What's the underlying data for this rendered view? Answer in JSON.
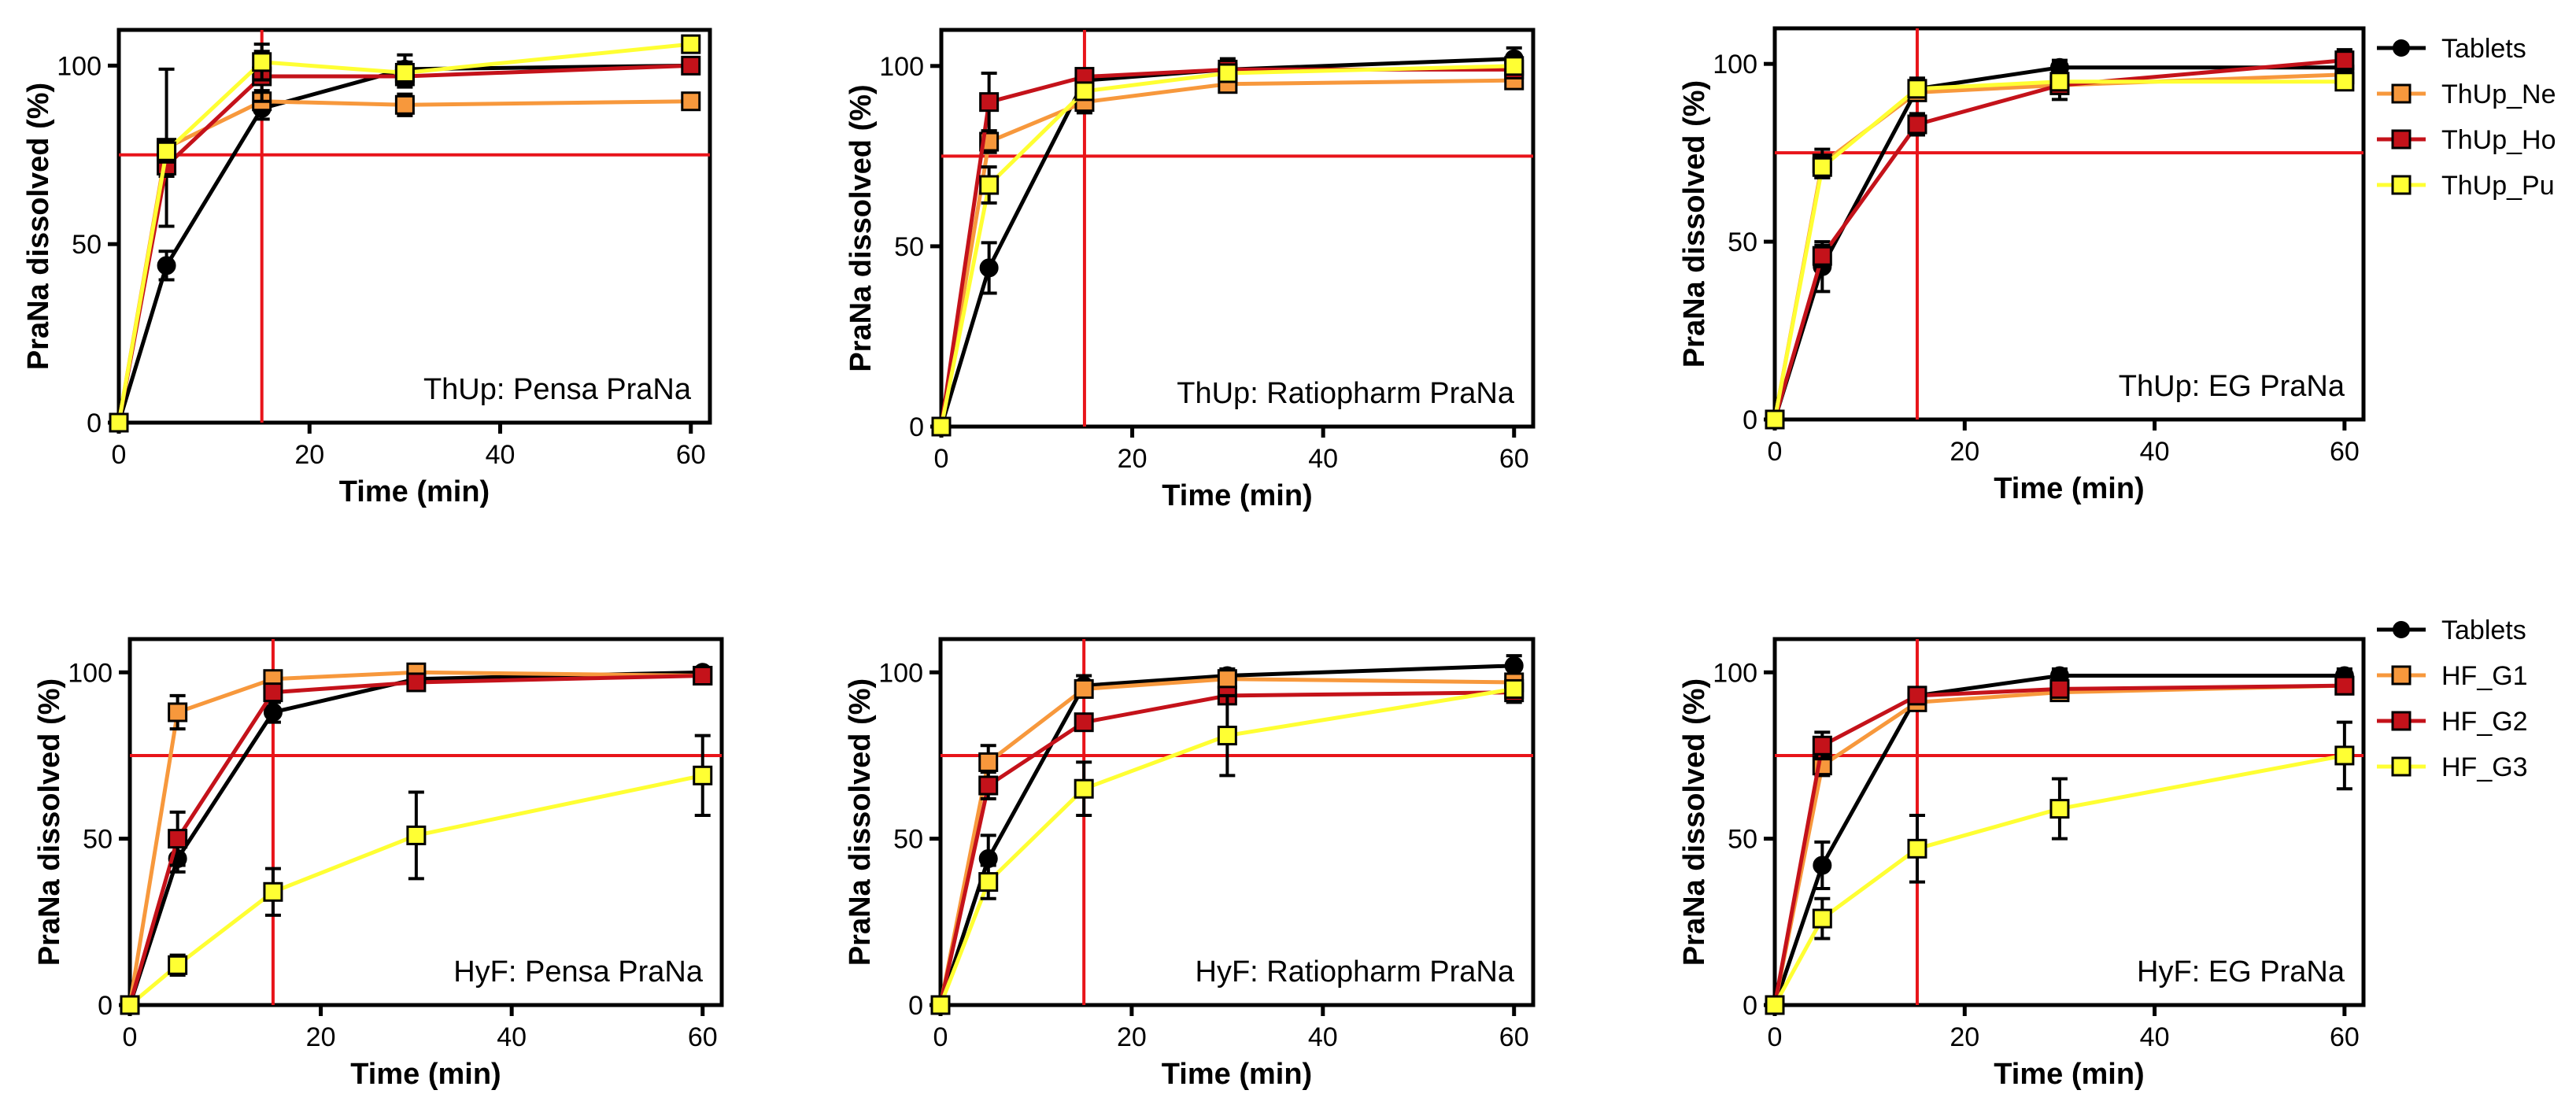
{
  "figure": {
    "description_free": true
  },
  "colors": {
    "Tablets": "#000000",
    "orange": "#f7983c",
    "darkred": "#c4121a",
    "yellow": "#ffff33",
    "reference": "#e8141a"
  },
  "legends": [
    {
      "entries": [
        "Tablets",
        "ThUp_Ne",
        "ThUp_Ho",
        "ThUp_Pu"
      ]
    },
    {
      "entries": [
        "Tablets",
        "HF_G1",
        "HF_G2",
        "HF_G3"
      ]
    }
  ],
  "chart_data": [
    {
      "type": "line",
      "panel_label": "ThUp: Pensa PraNa",
      "xlabel": "Time (min)",
      "ylabel": "PraNa dissolved (%)",
      "xlim": [
        0,
        62
      ],
      "ylim": [
        0,
        110
      ],
      "xticks": [
        0,
        20,
        40,
        60
      ],
      "yticks": [
        0,
        50,
        100
      ],
      "reference_lines": {
        "x": 15,
        "y": 75
      },
      "x": [
        0,
        5,
        15,
        30,
        60
      ],
      "series": [
        {
          "name": "Tablets",
          "marker": "circle",
          "values": [
            0,
            44,
            88,
            99,
            100
          ],
          "errors": [
            0,
            4,
            3,
            4,
            1
          ]
        },
        {
          "name": "ThUp_Ne",
          "marker": "square",
          "values": [
            0,
            77,
            90,
            89,
            90
          ],
          "errors": [
            0,
            22,
            3,
            3,
            1
          ]
        },
        {
          "name": "ThUp_Ho",
          "marker": "square",
          "values": [
            0,
            72,
            97,
            97,
            100
          ],
          "errors": [
            0,
            3,
            7,
            3,
            1
          ]
        },
        {
          "name": "ThUp_Pu",
          "marker": "square",
          "values": [
            0,
            76,
            101,
            98,
            106
          ],
          "errors": [
            0,
            3,
            5,
            3,
            1
          ]
        }
      ]
    },
    {
      "type": "line",
      "panel_label": "ThUp: Ratiopharm PraNa",
      "xlabel": "Time (min)",
      "ylabel": "PraNa dissolved (%)",
      "xlim": [
        0,
        62
      ],
      "ylim": [
        0,
        110
      ],
      "xticks": [
        0,
        20,
        40,
        60
      ],
      "yticks": [
        0,
        50,
        100
      ],
      "reference_lines": {
        "x": 15,
        "y": 75
      },
      "x": [
        0,
        5,
        15,
        30,
        60
      ],
      "series": [
        {
          "name": "Tablets",
          "marker": "circle",
          "values": [
            0,
            44,
            96,
            99,
            102
          ],
          "errors": [
            0,
            7,
            3,
            3,
            3
          ]
        },
        {
          "name": "ThUp_Ne",
          "marker": "square",
          "values": [
            0,
            79,
            90,
            95,
            96
          ],
          "errors": [
            0,
            3,
            3,
            2,
            2
          ]
        },
        {
          "name": "ThUp_Ho",
          "marker": "square",
          "values": [
            0,
            90,
            97,
            99,
            99
          ],
          "errors": [
            0,
            8,
            2,
            2,
            2
          ]
        },
        {
          "name": "ThUp_Pu",
          "marker": "square",
          "values": [
            0,
            67,
            93,
            98,
            100
          ],
          "errors": [
            0,
            5,
            2,
            2,
            2
          ]
        }
      ]
    },
    {
      "type": "line",
      "panel_label": "ThUp: EG PraNa",
      "xlabel": "Time (min)",
      "ylabel": "PraNa dissolved (%)",
      "xlim": [
        0,
        62
      ],
      "ylim": [
        0,
        110
      ],
      "xticks": [
        0,
        20,
        40,
        60
      ],
      "yticks": [
        0,
        50,
        100
      ],
      "reference_lines": {
        "x": 15,
        "y": 75
      },
      "x": [
        0,
        5,
        15,
        30,
        60
      ],
      "series": [
        {
          "name": "Tablets",
          "marker": "circle",
          "values": [
            0,
            43,
            93,
            99,
            99
          ],
          "errors": [
            0,
            7,
            3,
            2,
            4
          ]
        },
        {
          "name": "ThUp_Ne",
          "marker": "square",
          "values": [
            0,
            72,
            92,
            94,
            97
          ],
          "errors": [
            0,
            4,
            2,
            2,
            2
          ]
        },
        {
          "name": "ThUp_Ho",
          "marker": "square",
          "values": [
            0,
            46,
            83,
            94,
            101
          ],
          "errors": [
            0,
            3,
            3,
            4,
            3
          ]
        },
        {
          "name": "ThUp_Pu",
          "marker": "square",
          "values": [
            0,
            71,
            93,
            95,
            95
          ],
          "errors": [
            0,
            3,
            2,
            2,
            2
          ]
        }
      ]
    },
    {
      "type": "line",
      "panel_label": "HyF: Pensa PraNa",
      "xlabel": "Time (min)",
      "ylabel": "PraNa dissolved (%)",
      "xlim": [
        0,
        62
      ],
      "ylim": [
        0,
        110
      ],
      "xticks": [
        0,
        20,
        40,
        60
      ],
      "yticks": [
        0,
        50,
        100
      ],
      "reference_lines": {
        "x": 15,
        "y": 75
      },
      "x": [
        0,
        5,
        15,
        30,
        60
      ],
      "series": [
        {
          "name": "Tablets",
          "marker": "circle",
          "values": [
            0,
            44,
            88,
            98,
            100
          ],
          "errors": [
            0,
            4,
            3,
            2,
            1
          ]
        },
        {
          "name": "HF_G1",
          "marker": "square",
          "values": [
            0,
            88,
            98,
            100,
            99
          ],
          "errors": [
            0,
            5,
            2,
            2,
            2
          ]
        },
        {
          "name": "HF_G2",
          "marker": "square",
          "values": [
            0,
            50,
            94,
            97,
            99
          ],
          "errors": [
            0,
            8,
            2,
            2,
            2
          ]
        },
        {
          "name": "HF_G3",
          "marker": "square",
          "values": [
            0,
            12,
            34,
            51,
            69
          ],
          "errors": [
            0,
            3,
            7,
            13,
            12
          ]
        }
      ]
    },
    {
      "type": "line",
      "panel_label": "HyF: Ratiopharm PraNa",
      "xlabel": "Time (min)",
      "ylabel": "PraNa dissolved (%)",
      "xlim": [
        0,
        62
      ],
      "ylim": [
        0,
        110
      ],
      "xticks": [
        0,
        20,
        40,
        60
      ],
      "yticks": [
        0,
        50,
        100
      ],
      "reference_lines": {
        "x": 15,
        "y": 75
      },
      "x": [
        0,
        5,
        15,
        30,
        60
      ],
      "series": [
        {
          "name": "Tablets",
          "marker": "circle",
          "values": [
            0,
            44,
            96,
            99,
            102
          ],
          "errors": [
            0,
            7,
            3,
            2,
            3
          ]
        },
        {
          "name": "HF_G1",
          "marker": "square",
          "values": [
            0,
            73,
            95,
            98,
            97
          ],
          "errors": [
            0,
            5,
            2,
            2,
            2
          ]
        },
        {
          "name": "HF_G2",
          "marker": "square",
          "values": [
            0,
            66,
            85,
            93,
            94
          ],
          "errors": [
            0,
            4,
            2,
            2,
            3
          ]
        },
        {
          "name": "HF_G3",
          "marker": "square",
          "values": [
            0,
            37,
            65,
            81,
            95
          ],
          "errors": [
            0,
            5,
            8,
            12,
            2
          ]
        }
      ]
    },
    {
      "type": "line",
      "panel_label": "HyF: EG PraNa",
      "xlabel": "Time (min)",
      "ylabel": "PraNa dissolved (%)",
      "xlim": [
        0,
        62
      ],
      "ylim": [
        0,
        110
      ],
      "xticks": [
        0,
        20,
        40,
        60
      ],
      "yticks": [
        0,
        50,
        100
      ],
      "reference_lines": {
        "x": 15,
        "y": 75
      },
      "x": [
        0,
        5,
        15,
        30,
        60
      ],
      "series": [
        {
          "name": "Tablets",
          "marker": "circle",
          "values": [
            0,
            42,
            93,
            99,
            99
          ],
          "errors": [
            0,
            7,
            2,
            2,
            2
          ]
        },
        {
          "name": "HF_G1",
          "marker": "square",
          "values": [
            0,
            72,
            91,
            94,
            96
          ],
          "errors": [
            0,
            3,
            2,
            2,
            2
          ]
        },
        {
          "name": "HF_G2",
          "marker": "square",
          "values": [
            0,
            78,
            93,
            95,
            96
          ],
          "errors": [
            0,
            4,
            2,
            2,
            2
          ]
        },
        {
          "name": "HF_G3",
          "marker": "square",
          "values": [
            0,
            26,
            47,
            59,
            75
          ],
          "errors": [
            0,
            6,
            10,
            9,
            10
          ]
        }
      ]
    }
  ]
}
